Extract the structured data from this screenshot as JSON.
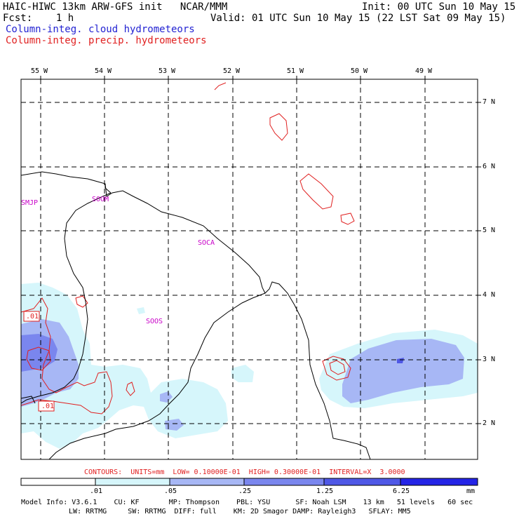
{
  "header": {
    "title": "HAIC-HIWC 13km ARW-GFS init   NCAR/MMM",
    "init": "Init: 00 UTC Sun 10 May 15",
    "fcst": "Fcst:    1 h",
    "valid": "Valid: 01 UTC Sun 10 May 15 (22 LST Sat 09 May 15)",
    "legend_cloud": "Column-integ. cloud hydrometeors",
    "legend_precip": "Column-integ. precip. hydrometeors"
  },
  "colors": {
    "cloud_text": "#2323d2",
    "precip_text": "#e01f1f",
    "station": "#c800c8",
    "shade_1": "#d6f6fb",
    "shade_2": "#a7b7f5",
    "shade_3": "#7a86ee",
    "shade_4": "#4f58e6",
    "shade_5": "#2424e6"
  },
  "longitude_labels": [
    "55 W",
    "54 W",
    "53 W",
    "52 W",
    "51 W",
    "50 W",
    "49 W"
  ],
  "latitude_labels": [
    "7 N",
    "6 N",
    "5 N",
    "4 N",
    "3 N",
    "2 N"
  ],
  "stations": [
    "SMJP",
    "SOOM",
    "SOCA",
    "SOOS"
  ],
  "contour_labels": [
    ".01",
    ".01"
  ],
  "contours_text": "CONTOURS:  UNITS=mm  LOW= 0.10000E-01  HIGH= 0.30000E-01  INTERVAL=X  3.0000",
  "colorbar": {
    "ticks": [
      ".01",
      ".05",
      ".25",
      "1.25",
      "6.25"
    ],
    "units": "mm"
  },
  "model_info": {
    "line1": "Model Info: V3.6.1    CU: KF       MP: Thompson    PBL: YSU      SF: Noah LSM    13 km   51 levels   60 sec",
    "line2": "LW: RRTMG     SW: RRTMG  DIFF: full    KM: 2D Smagor DAMP: Rayleigh3   SFLAY: MM5"
  }
}
